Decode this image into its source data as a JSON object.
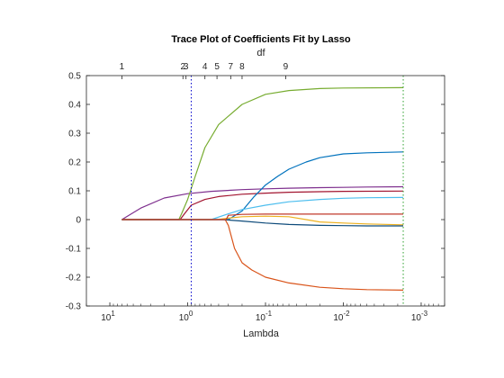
{
  "chart_data": {
    "type": "line",
    "title": "Trace Plot of Coefficients Fit by Lasso",
    "xlabel": "Lambda",
    "top_axis_label": "df",
    "x_scale": "log",
    "x_direction": "reversed",
    "xlim": [
      0.0005,
      20
    ],
    "ylim": [
      -0.3,
      0.5
    ],
    "y_ticks": [
      {
        "value": -0.3,
        "label": "-0.3"
      },
      {
        "value": -0.2,
        "label": "-0.2"
      },
      {
        "value": -0.1,
        "label": "-0.1"
      },
      {
        "value": 0,
        "label": "0"
      },
      {
        "value": 0.1,
        "label": "0.1"
      },
      {
        "value": 0.2,
        "label": "0.2"
      },
      {
        "value": 0.3,
        "label": "0.3"
      },
      {
        "value": 0.4,
        "label": "0.4"
      },
      {
        "value": 0.5,
        "label": "0.5"
      }
    ],
    "x_ticks": [
      {
        "value": 10,
        "base": "10",
        "exp": "1"
      },
      {
        "value": 1,
        "base": "10",
        "exp": "0"
      },
      {
        "value": 0.1,
        "base": "10",
        "exp": "-1"
      },
      {
        "value": 0.01,
        "base": "10",
        "exp": "-2"
      },
      {
        "value": 0.001,
        "base": "10",
        "exp": "-3"
      }
    ],
    "df_ticks": [
      {
        "lambda": 7.0,
        "label": "1"
      },
      {
        "lambda": 1.15,
        "label": "2"
      },
      {
        "lambda": 1.05,
        "label": "3"
      },
      {
        "lambda": 0.6,
        "label": "4"
      },
      {
        "lambda": 0.42,
        "label": "5"
      },
      {
        "lambda": 0.28,
        "label": "7"
      },
      {
        "lambda": 0.2,
        "label": "8"
      },
      {
        "lambda": 0.055,
        "label": "9"
      }
    ],
    "reference_lines": [
      {
        "lambda": 0.9,
        "color": "#0000cd",
        "style": "dotted"
      },
      {
        "lambda": 0.0017,
        "color": "#2ca02c",
        "style": "dotted"
      }
    ],
    "grid": false,
    "series": [
      {
        "color": "#7e2f8e",
        "points": [
          [
            7,
            0
          ],
          [
            4,
            0.04
          ],
          [
            2,
            0.075
          ],
          [
            1,
            0.09
          ],
          [
            0.5,
            0.098
          ],
          [
            0.2,
            0.104
          ],
          [
            0.1,
            0.107
          ],
          [
            0.05,
            0.109
          ],
          [
            0.02,
            0.111
          ],
          [
            0.01,
            0.112
          ],
          [
            0.005,
            0.113
          ],
          [
            0.0017,
            0.114
          ]
        ]
      },
      {
        "color": "#77ac30",
        "points": [
          [
            7,
            0
          ],
          [
            1.3,
            0
          ],
          [
            1.2,
            0.02
          ],
          [
            1.0,
            0.07
          ],
          [
            0.8,
            0.15
          ],
          [
            0.6,
            0.25
          ],
          [
            0.4,
            0.33
          ],
          [
            0.2,
            0.4
          ],
          [
            0.1,
            0.435
          ],
          [
            0.05,
            0.448
          ],
          [
            0.02,
            0.455
          ],
          [
            0.01,
            0.457
          ],
          [
            0.0017,
            0.458
          ]
        ]
      },
      {
        "color": "#a2142f",
        "points": [
          [
            7,
            0
          ],
          [
            1.25,
            0
          ],
          [
            1.1,
            0.02
          ],
          [
            0.9,
            0.05
          ],
          [
            0.6,
            0.07
          ],
          [
            0.4,
            0.08
          ],
          [
            0.2,
            0.088
          ],
          [
            0.1,
            0.092
          ],
          [
            0.05,
            0.095
          ],
          [
            0.02,
            0.097
          ],
          [
            0.01,
            0.098
          ],
          [
            0.0017,
            0.099
          ]
        ]
      },
      {
        "color": "#0072bd",
        "points": [
          [
            7,
            0
          ],
          [
            0.3,
            0
          ],
          [
            0.2,
            0.03
          ],
          [
            0.14,
            0.08
          ],
          [
            0.1,
            0.12
          ],
          [
            0.07,
            0.15
          ],
          [
            0.05,
            0.175
          ],
          [
            0.03,
            0.2
          ],
          [
            0.02,
            0.215
          ],
          [
            0.01,
            0.228
          ],
          [
            0.005,
            0.232
          ],
          [
            0.0017,
            0.235
          ]
        ]
      },
      {
        "color": "#4dbeee",
        "points": [
          [
            7,
            0
          ],
          [
            0.5,
            0
          ],
          [
            0.3,
            0.02
          ],
          [
            0.2,
            0.035
          ],
          [
            0.1,
            0.05
          ],
          [
            0.05,
            0.062
          ],
          [
            0.02,
            0.07
          ],
          [
            0.01,
            0.074
          ],
          [
            0.005,
            0.076
          ],
          [
            0.0017,
            0.077
          ]
        ]
      },
      {
        "color": "#d95319",
        "points": [
          [
            7,
            0
          ],
          [
            0.33,
            0
          ],
          [
            0.3,
            -0.02
          ],
          [
            0.25,
            -0.1
          ],
          [
            0.2,
            -0.15
          ],
          [
            0.15,
            -0.175
          ],
          [
            0.1,
            -0.2
          ],
          [
            0.05,
            -0.22
          ],
          [
            0.02,
            -0.235
          ],
          [
            0.01,
            -0.24
          ],
          [
            0.005,
            -0.243
          ],
          [
            0.0017,
            -0.245
          ]
        ]
      },
      {
        "color": "#edb120",
        "points": [
          [
            7,
            0
          ],
          [
            0.42,
            0
          ],
          [
            0.3,
            0.005
          ],
          [
            0.2,
            0.01
          ],
          [
            0.1,
            0.012
          ],
          [
            0.05,
            0.01
          ],
          [
            0.03,
            0
          ],
          [
            0.02,
            -0.008
          ],
          [
            0.01,
            -0.012
          ],
          [
            0.005,
            -0.015
          ],
          [
            0.0017,
            -0.018
          ]
        ]
      },
      {
        "color": "#0d4a7a",
        "points": [
          [
            7,
            0
          ],
          [
            0.35,
            0
          ],
          [
            0.2,
            -0.005
          ],
          [
            0.1,
            -0.012
          ],
          [
            0.05,
            -0.017
          ],
          [
            0.02,
            -0.02
          ],
          [
            0.01,
            -0.021
          ],
          [
            0.005,
            -0.022
          ],
          [
            0.0017,
            -0.022
          ]
        ]
      },
      {
        "color": "#c0392b",
        "points": [
          [
            7,
            0
          ],
          [
            0.32,
            0
          ],
          [
            0.3,
            0.015
          ],
          [
            0.2,
            0.018
          ],
          [
            0.1,
            0.019
          ],
          [
            0.05,
            0.019
          ],
          [
            0.01,
            0.019
          ],
          [
            0.0017,
            0.019
          ]
        ]
      }
    ]
  }
}
